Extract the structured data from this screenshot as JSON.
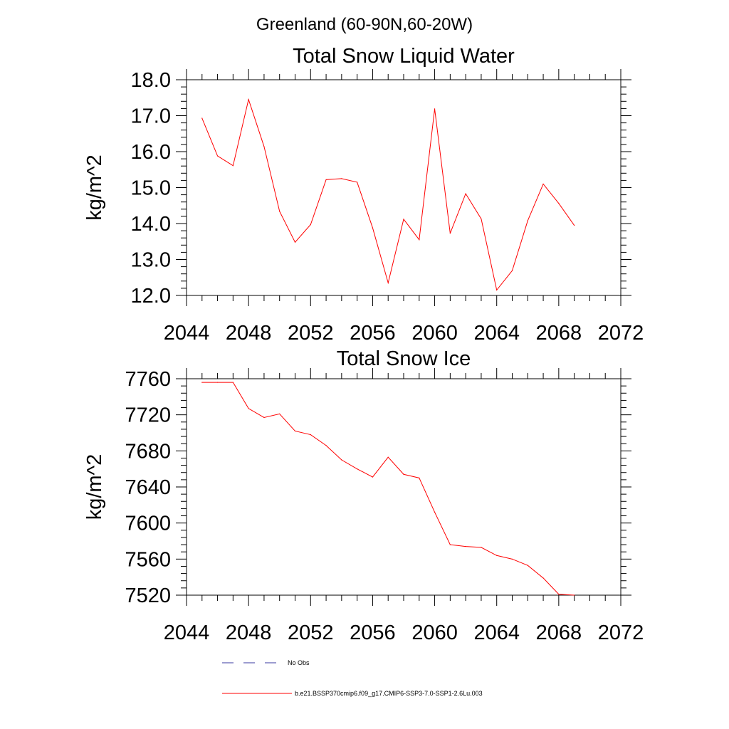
{
  "figure": {
    "title": "Greenland (60-90N,60-20W)"
  },
  "colors": {
    "series_line": "#ff0000",
    "obs_line": "#3a3aa0",
    "axes": "#000000"
  },
  "legend": {
    "placement": "bottom",
    "items": [
      {
        "label": "No Obs",
        "style": "dashed",
        "color": "#3a3aa0"
      },
      {
        "label": "b.e21.BSSP370cmip6.f09_g17.CMIP6-SSP3-7.0-SSP1-2.6Lu.003",
        "style": "solid",
        "color": "#ff0000"
      }
    ]
  },
  "chart_data": [
    {
      "type": "line",
      "title": "Total Snow Liquid Water",
      "xlabel": "",
      "ylabel": "kg/m^2",
      "xlim": [
        2044,
        2072
      ],
      "ylim": [
        12.0,
        18.0
      ],
      "xticks": [
        2044,
        2048,
        2052,
        2056,
        2060,
        2064,
        2068,
        2072
      ],
      "yticks": [
        "12.0",
        "13.0",
        "14.0",
        "15.0",
        "16.0",
        "17.0",
        "18.0"
      ],
      "grid": false,
      "x": [
        2045,
        2046,
        2047,
        2048,
        2049,
        2050,
        2051,
        2052,
        2053,
        2054,
        2055,
        2056,
        2057,
        2058,
        2059,
        2060,
        2061,
        2062,
        2063,
        2064,
        2065,
        2066,
        2067,
        2068,
        2069
      ],
      "series": [
        {
          "name": "b.e21.BSSP370cmip6.f09_g17.CMIP6-SSP3-7.0-SSP1-2.6Lu.003",
          "values": [
            16.93,
            15.88,
            15.61,
            17.45,
            16.14,
            14.34,
            13.48,
            13.97,
            15.22,
            15.25,
            15.15,
            13.88,
            12.35,
            14.12,
            13.55,
            17.19,
            13.73,
            14.83,
            14.13,
            12.15,
            12.69,
            14.08,
            15.1,
            14.56,
            13.95
          ]
        }
      ]
    },
    {
      "type": "line",
      "title": "Total Snow Ice",
      "xlabel": "",
      "ylabel": "kg/m^2",
      "xlim": [
        2044,
        2072
      ],
      "ylim": [
        7520,
        7760
      ],
      "xticks": [
        2044,
        2048,
        2052,
        2056,
        2060,
        2064,
        2068,
        2072
      ],
      "yticks": [
        "7520",
        "7560",
        "7600",
        "7640",
        "7680",
        "7720",
        "7760"
      ],
      "grid": false,
      "x": [
        2045,
        2046,
        2047,
        2048,
        2049,
        2050,
        2051,
        2052,
        2053,
        2054,
        2055,
        2056,
        2057,
        2058,
        2059,
        2060,
        2061,
        2062,
        2063,
        2064,
        2065,
        2066,
        2067,
        2068,
        2069
      ],
      "series": [
        {
          "name": "b.e21.BSSP370cmip6.f09_g17.CMIP6-SSP3-7.0-SSP1-2.6Lu.003",
          "values": [
            7756,
            7756,
            7756,
            7727,
            7717,
            7721,
            7702,
            7698,
            7686,
            7670,
            7660,
            7651,
            7673,
            7654,
            7650,
            7612,
            7576,
            7574,
            7573,
            7564,
            7560,
            7553,
            7539,
            7521,
            7520
          ]
        }
      ]
    }
  ]
}
